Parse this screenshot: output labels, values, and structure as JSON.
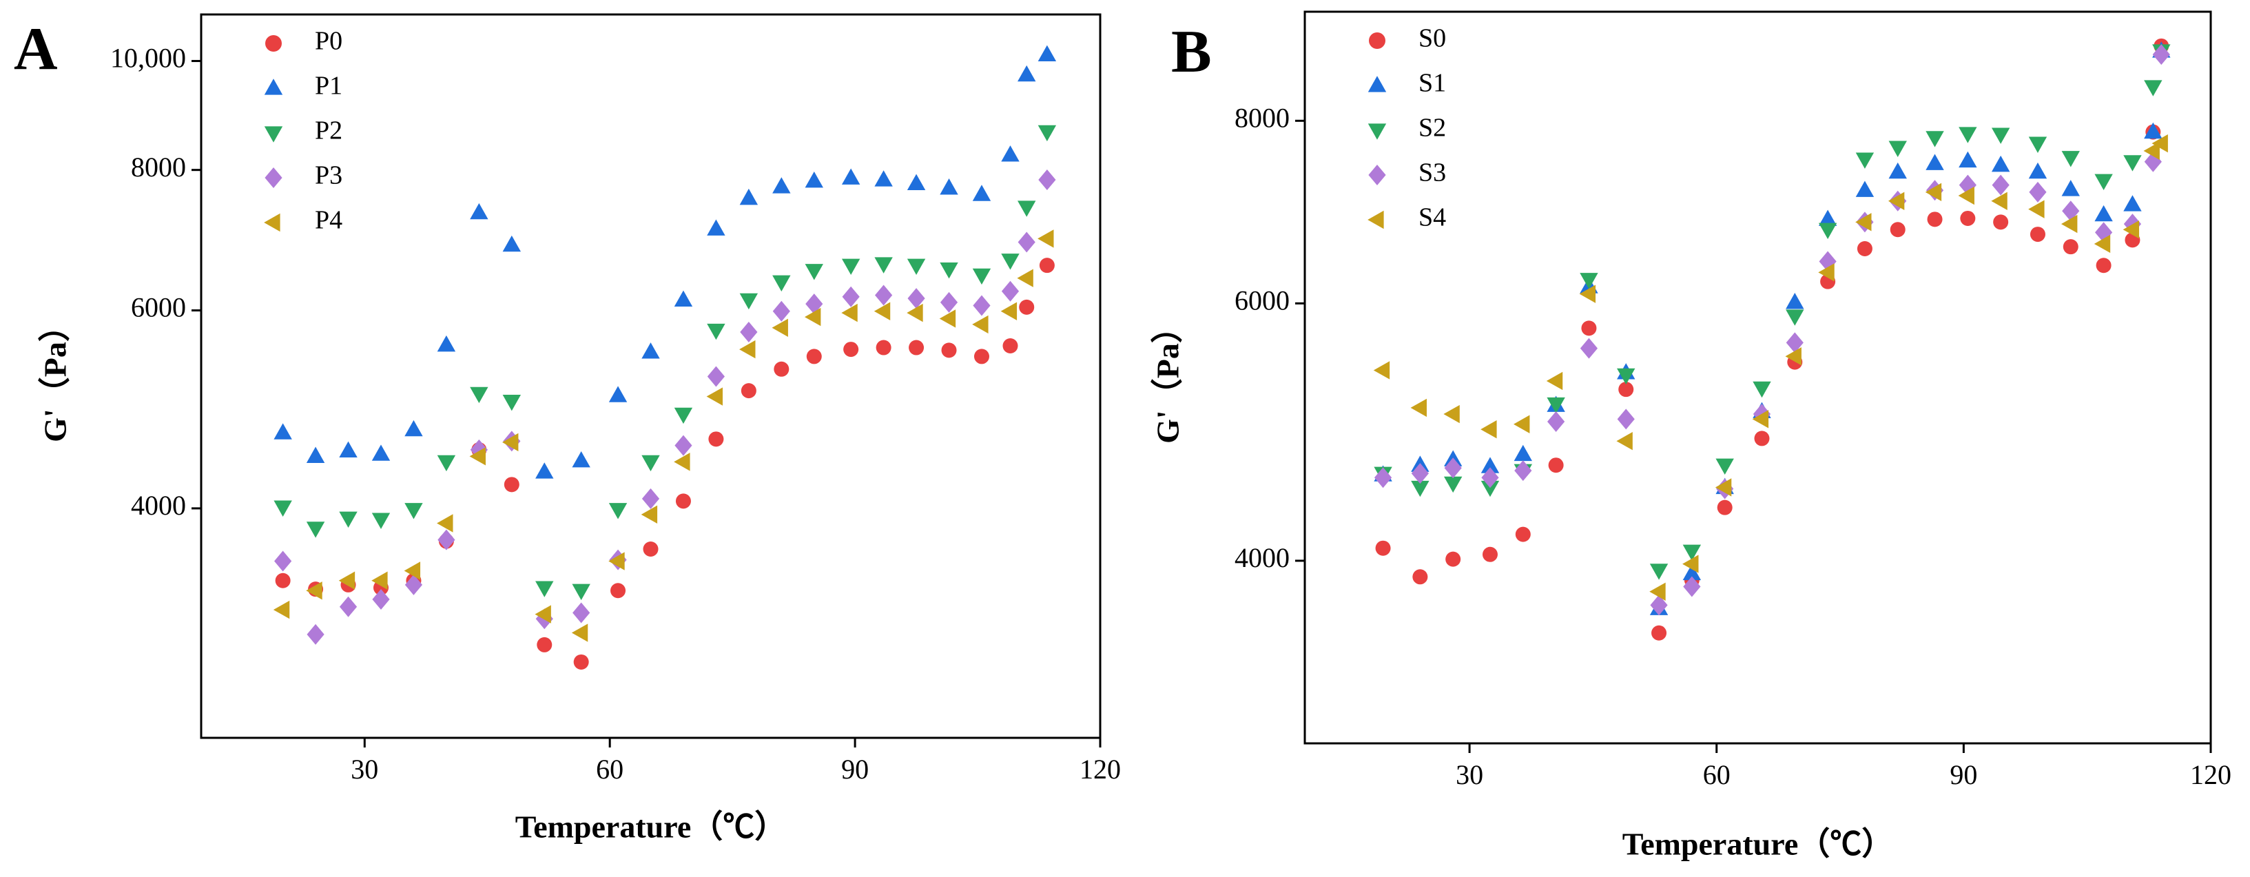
{
  "chart_data": [
    {
      "type": "scatter",
      "title": "A",
      "x_label": "Temperature（℃）",
      "y_label": "G'（Pa）",
      "log_y": true,
      "legend": "upper left",
      "xlim": [
        10,
        120
      ],
      "xticks": [
        30,
        60,
        90,
        120
      ],
      "ylim": [
        2500,
        11000
      ],
      "yticks": [
        4000,
        6000,
        8000,
        {
          "value": 10000,
          "label": "10,000"
        }
      ],
      "x": [
        20,
        24,
        28,
        32,
        36,
        40,
        44,
        48,
        52,
        56.5,
        61,
        65,
        69,
        73,
        77,
        81,
        85,
        89.5,
        93.5,
        97.5,
        101.5,
        105.5,
        109,
        111,
        113.5
      ],
      "series": [
        {
          "name": "P0",
          "color": "#e84040",
          "marker": "circle",
          "values": [
            3450,
            3390,
            3420,
            3400,
            3450,
            3740,
            4510,
            4200,
            3025,
            2920,
            3380,
            3680,
            4060,
            4610,
            5090,
            5320,
            5460,
            5540,
            5560,
            5560,
            5530,
            5460,
            5580,
            6040,
            6580
          ]
        },
        {
          "name": "P1",
          "color": "#1f6fdc",
          "marker": "triangle-up",
          "values": [
            4670,
            4450,
            4500,
            4470,
            4700,
            5590,
            7330,
            6860,
            4310,
            4410,
            5040,
            5510,
            6130,
            7090,
            7550,
            7730,
            7820,
            7870,
            7840,
            7780,
            7710,
            7610,
            8250,
            9720,
            10130
          ]
        },
        {
          "name": "P2",
          "color": "#2ca860",
          "marker": "triangle-down",
          "values": [
            4010,
            3840,
            3920,
            3910,
            3990,
            4400,
            5060,
            4980,
            3400,
            3380,
            3990,
            4400,
            4850,
            5760,
            6130,
            6360,
            6510,
            6580,
            6600,
            6580,
            6530,
            6450,
            6650,
            7410,
            8650
          ]
        },
        {
          "name": "P3",
          "color": "#b07ad8",
          "marker": "diamond",
          "values": [
            3590,
            3090,
            3270,
            3320,
            3420,
            3750,
            4510,
            4590,
            3190,
            3230,
            3600,
            4080,
            4550,
            5240,
            5740,
            5990,
            6080,
            6170,
            6190,
            6150,
            6100,
            6060,
            6240,
            6900,
            7840
          ]
        },
        {
          "name": "P4",
          "color": "#c9a01a",
          "marker": "triangle-left",
          "values": [
            3250,
            3380,
            3450,
            3450,
            3520,
            3880,
            4450,
            4580,
            3220,
            3100,
            3590,
            3950,
            4400,
            5030,
            5540,
            5790,
            5920,
            5970,
            5990,
            5970,
            5900,
            5830,
            5990,
            6410,
            6950
          ]
        }
      ]
    },
    {
      "type": "scatter",
      "title": "B",
      "x_label": "Temperature（℃）",
      "y_label": "G'（Pa）",
      "log_y": true,
      "legend": "upper left",
      "xlim": [
        10,
        120
      ],
      "xticks": [
        30,
        60,
        90,
        120
      ],
      "ylim": [
        3000,
        9500
      ],
      "yticks": [
        4000,
        6000,
        8000
      ],
      "x": [
        19.5,
        24,
        28,
        32.5,
        36.5,
        40.5,
        44.5,
        49,
        53,
        57,
        61,
        65.5,
        69.5,
        73.5,
        78,
        82,
        86.5,
        90.5,
        94.5,
        99,
        103,
        107,
        110.5,
        113,
        114
      ],
      "series": [
        {
          "name": "S0",
          "color": "#e84040",
          "marker": "circle",
          "values": [
            4080,
            3900,
            4010,
            4040,
            4170,
            4650,
            5770,
            5240,
            3570,
            3880,
            4350,
            4850,
            5470,
            6210,
            6540,
            6740,
            6850,
            6860,
            6820,
            6690,
            6560,
            6370,
            6630,
            7860,
            9000
          ]
        },
        {
          "name": "S1",
          "color": "#1f6fdc",
          "marker": "triangle-up",
          "values": [
            4580,
            4650,
            4690,
            4640,
            4730,
            5110,
            6160,
            5380,
            3710,
            3920,
            4490,
            5060,
            6010,
            6850,
            7170,
            7380,
            7480,
            7510,
            7460,
            7380,
            7180,
            6900,
            7010,
            7860,
            8930
          ]
        },
        {
          "name": "S2",
          "color": "#2ca860",
          "marker": "triangle-down",
          "values": [
            4590,
            4490,
            4520,
            4490,
            4610,
            5120,
            6230,
            5360,
            3940,
            4060,
            4650,
            5250,
            5880,
            6740,
            7530,
            7670,
            7790,
            7840,
            7830,
            7720,
            7550,
            7280,
            7500,
            8440,
            8930
          ]
        },
        {
          "name": "S3",
          "color": "#b07ad8",
          "marker": "diamond",
          "values": [
            4560,
            4590,
            4630,
            4560,
            4610,
            4980,
            5590,
            5000,
            3730,
            3840,
            4480,
            5040,
            5640,
            6410,
            6820,
            7050,
            7170,
            7230,
            7230,
            7150,
            6940,
            6710,
            6800,
            7500,
            8880
          ]
        },
        {
          "name": "S4",
          "color": "#c9a01a",
          "marker": "triangle-left",
          "values": [
            5400,
            5090,
            5040,
            4920,
            4960,
            5310,
            6090,
            4830,
            3810,
            3980,
            4490,
            5000,
            5520,
            6300,
            6820,
            7050,
            7150,
            7110,
            7050,
            6960,
            6800,
            6590,
            6740,
            7630,
            7720
          ]
        }
      ]
    }
  ]
}
